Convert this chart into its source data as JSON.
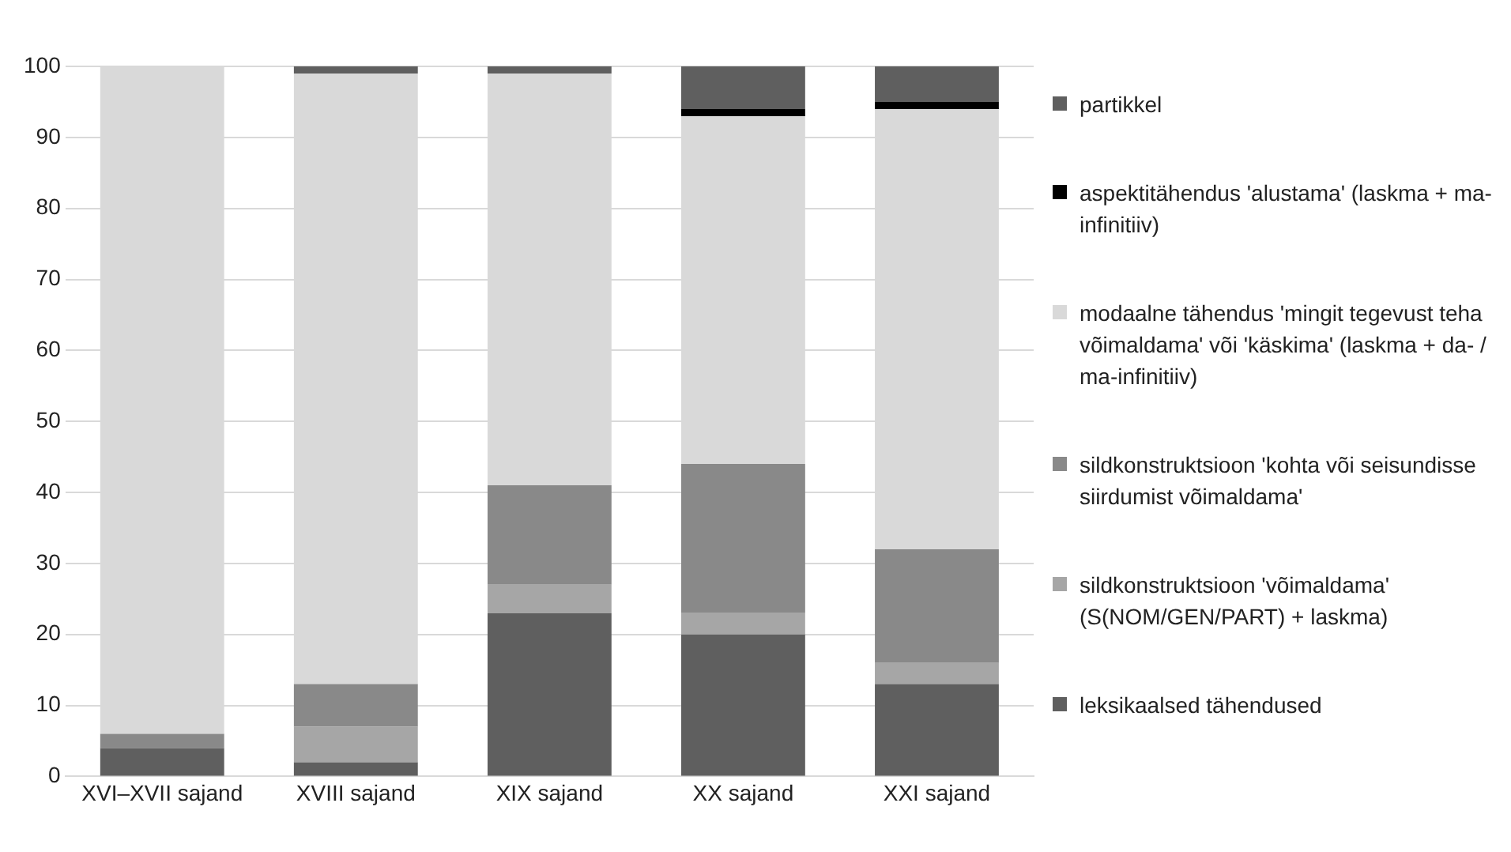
{
  "chart_data": {
    "type": "bar",
    "stacked": true,
    "categories": [
      "XVI–XVII sajand",
      "XVIII sajand",
      "XIX sajand",
      "XX sajand",
      "XXI sajand"
    ],
    "series": [
      {
        "name": "leksikaalsed tähendused",
        "color": "#5f5f5f",
        "values": [
          4,
          2,
          23,
          20,
          13
        ]
      },
      {
        "name": "sildkonstruktsioon 'võimaldama' (S(NOM/GEN/PART) + laskma)",
        "color": "#a6a6a6",
        "values": [
          0,
          5,
          4,
          3,
          3
        ]
      },
      {
        "name": "sildkonstruktsioon 'kohta või seisundisse siirdumist võimaldama'",
        "color": "#898989",
        "values": [
          2,
          6,
          14,
          21,
          16
        ]
      },
      {
        "name": "modaalne tähendus 'mingit tegevust teha võimaldama' või 'käskima' (laskma + da- / ma-infinitiiv)",
        "color": "#d9d9d9",
        "values": [
          94,
          86,
          58,
          49,
          62
        ]
      },
      {
        "name": "aspektitähendus 'alustama' (laskma + ma-infinitiiv)",
        "color": "#000000",
        "values": [
          0,
          0,
          0,
          1,
          1
        ]
      },
      {
        "name": "partikkel",
        "color": "#5f5f5f",
        "values": [
          0,
          1,
          1,
          6,
          5
        ]
      }
    ],
    "ylim": [
      0,
      100
    ],
    "yticks": [
      0,
      10,
      20,
      30,
      40,
      50,
      60,
      70,
      80,
      90,
      100
    ],
    "grid": "y",
    "legend": "right"
  }
}
